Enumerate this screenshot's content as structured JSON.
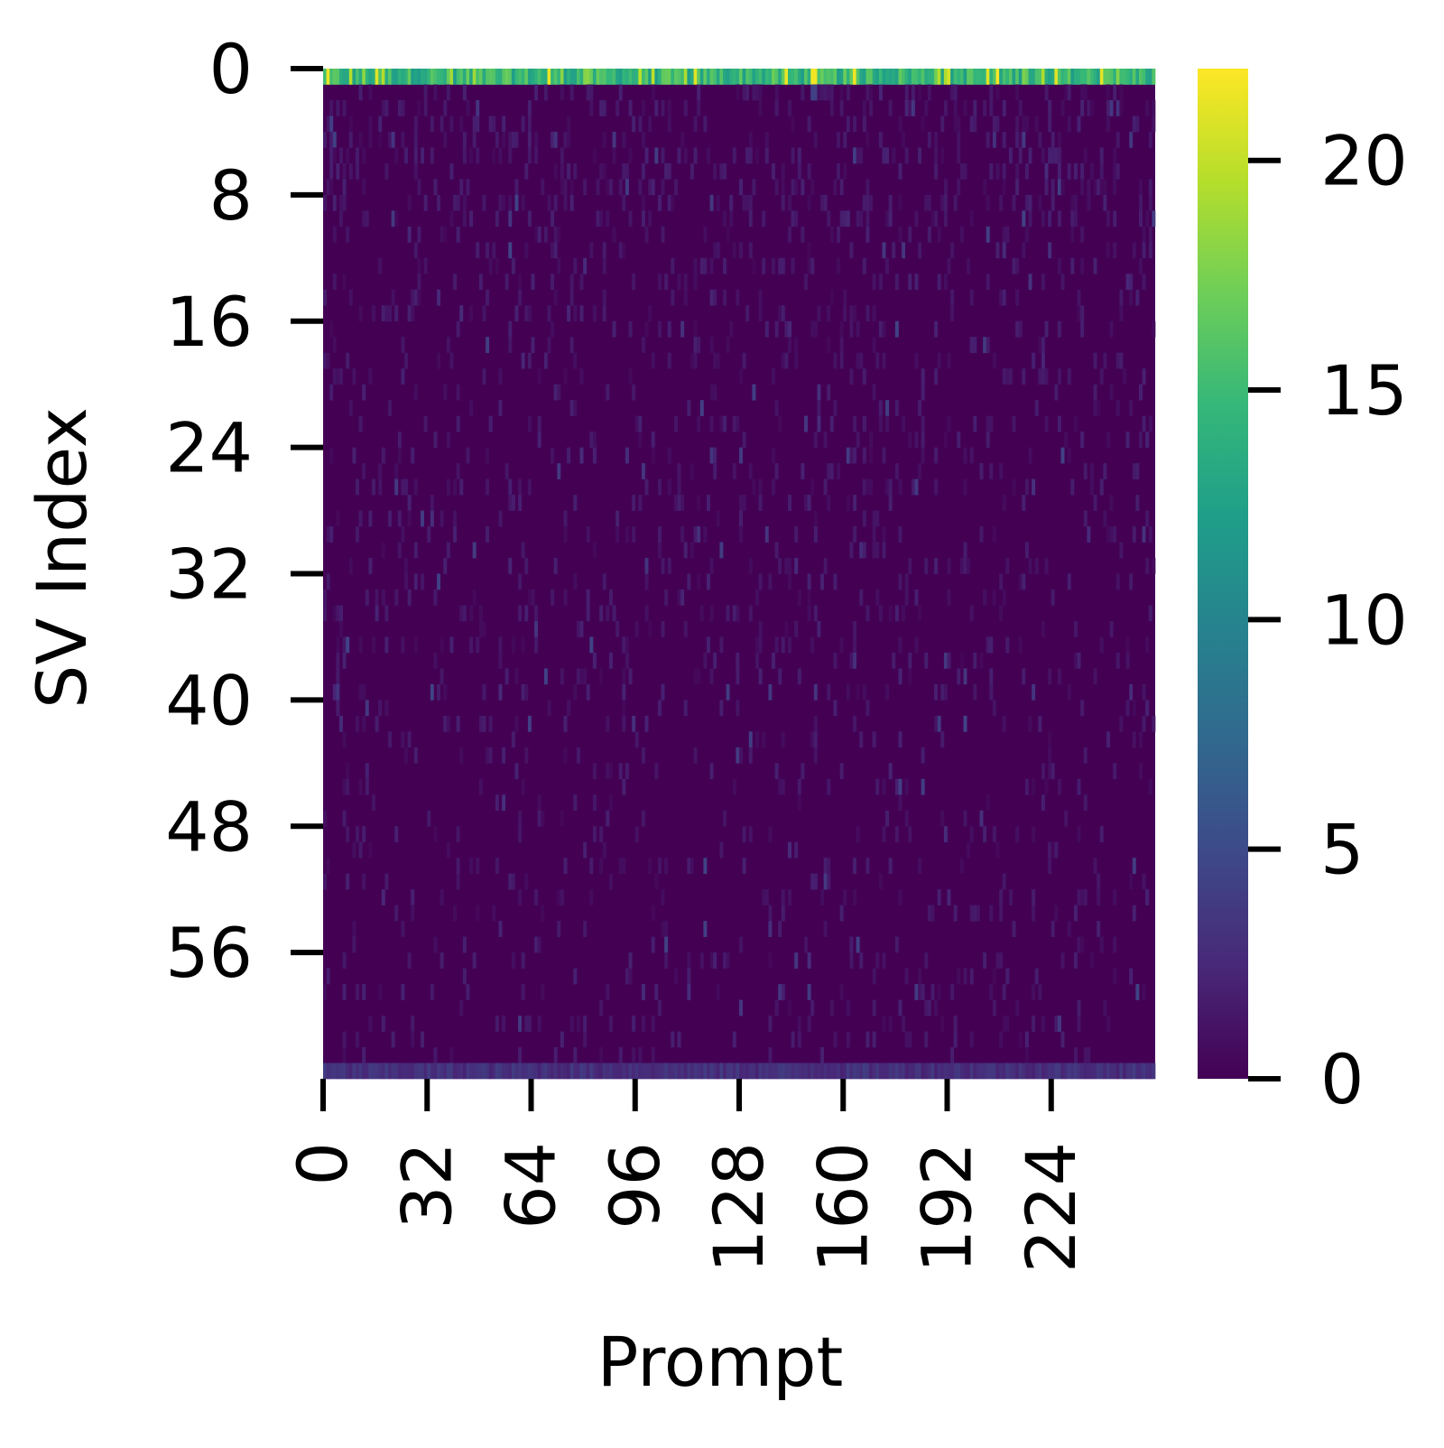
{
  "chart_data": {
    "type": "heatmap",
    "title": "",
    "xlabel": "Prompt",
    "ylabel": "SV Index",
    "rows": 64,
    "columns": 256,
    "x_tick_values": [
      0,
      32,
      64,
      96,
      128,
      160,
      192,
      224
    ],
    "x_tick_labels": [
      "0",
      "32",
      "64",
      "96",
      "128",
      "160",
      "192",
      "224"
    ],
    "y_tick_values": [
      0,
      8,
      16,
      24,
      32,
      40,
      48,
      56
    ],
    "y_tick_labels": [
      "0",
      "8",
      "16",
      "24",
      "32",
      "40",
      "48",
      "56"
    ],
    "colorbar": {
      "colormap": "viridis",
      "vmin": 0,
      "vmax": 22,
      "tick_values": [
        0,
        5,
        10,
        15,
        20
      ],
      "tick_labels": [
        "0",
        "5",
        "10",
        "15",
        "20"
      ]
    },
    "value_summary": {
      "row_0": "high values, mostly 12-16, peaks near 22",
      "rows_1_62": "near 0, scattered sparse values up to about 4",
      "row_63": "low values, mostly 2-4"
    },
    "colors": {
      "viridis_stops": [
        "#440154",
        "#482878",
        "#3e4989",
        "#31688e",
        "#26828e",
        "#1f9e89",
        "#35b779",
        "#6ece58",
        "#b5de2b",
        "#fde725"
      ]
    }
  }
}
